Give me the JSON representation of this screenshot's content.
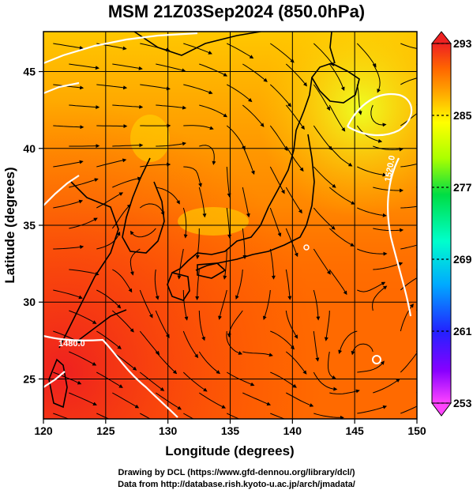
{
  "title": "MSM 21Z03Sep2024 (850.0hPa)",
  "x_axis": {
    "label": "Longitude (degrees)",
    "ticks": [
      "120",
      "125",
      "130",
      "135",
      "140",
      "145",
      "150"
    ]
  },
  "y_axis": {
    "label": "Latitude  (degrees)",
    "ticks": [
      "25",
      "30",
      "35",
      "40",
      "45"
    ]
  },
  "colorbar": {
    "ticks": [
      "293",
      "285",
      "277",
      "269",
      "261",
      "253"
    ],
    "colors": [
      "#ff44ff",
      "#8800ff",
      "#2222ff",
      "#00aaff",
      "#00ffcc",
      "#00dd44",
      "#aaff00",
      "#ffff00",
      "#ffaa00",
      "#ff6600",
      "#ff2200",
      "#ee2222"
    ]
  },
  "contour_labels": [
    "1480.0",
    "1520.0"
  ],
  "credits": {
    "line1": "Drawing by DCL (https://www.gfd-dennou.org/library/dcl/)",
    "line2": "Data from http://database.rish.kyoto-u.ac.jp/arch/jmadata/"
  },
  "chart_data": {
    "type": "heatmap",
    "title": "MSM 21Z03Sep2024 (850.0hPa)",
    "xlabel": "Longitude (degrees)",
    "ylabel": "Latitude  (degrees)",
    "xlim": [
      120,
      150
    ],
    "ylim": [
      22.4,
      47.6
    ],
    "x_ticks": [
      120,
      125,
      130,
      135,
      140,
      145,
      150
    ],
    "y_ticks": [
      25,
      30,
      35,
      40,
      45
    ],
    "colorbar_range": [
      253,
      293
    ],
    "colorbar_ticks": [
      253,
      261,
      269,
      277,
      285,
      293
    ],
    "grid": true,
    "overlays": [
      "temperature shading",
      "wind streamlines",
      "geopotential height contours",
      "coastlines"
    ]
  }
}
